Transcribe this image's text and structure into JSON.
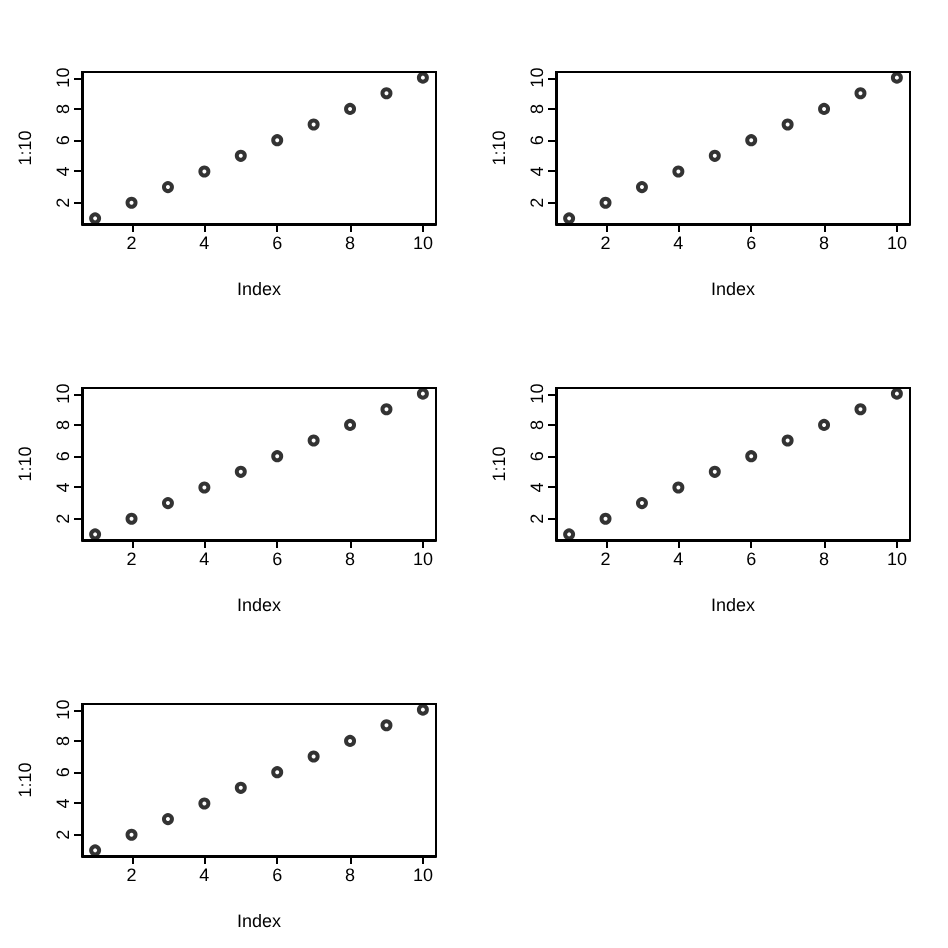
{
  "chart_data": [
    {
      "type": "scatter",
      "xlabel": "Index",
      "ylabel": "1:10",
      "x": [
        1,
        2,
        3,
        4,
        5,
        6,
        7,
        8,
        9,
        10
      ],
      "values": [
        1,
        2,
        3,
        4,
        5,
        6,
        7,
        8,
        9,
        10
      ],
      "color": "#000000",
      "marker": "circle",
      "xlim": [
        0.64,
        10.36
      ],
      "ylim": [
        0.64,
        10.36
      ],
      "xticks": [
        2,
        4,
        6,
        8,
        10
      ],
      "yticks": [
        2,
        4,
        6,
        8,
        10
      ],
      "grid": false
    },
    {
      "type": "scatter",
      "xlabel": "Index",
      "ylabel": "1:10",
      "x": [
        1,
        2,
        3,
        4,
        5,
        6,
        7,
        8,
        9,
        10
      ],
      "values": [
        1,
        2,
        3,
        4,
        5,
        6,
        7,
        8,
        9,
        10
      ],
      "color": "#000000",
      "marker": "circle",
      "xlim": [
        0.64,
        10.36
      ],
      "ylim": [
        0.64,
        10.36
      ],
      "xticks": [
        2,
        4,
        6,
        8,
        10
      ],
      "yticks": [
        2,
        4,
        6,
        8,
        10
      ],
      "grid": false
    },
    {
      "type": "scatter",
      "xlabel": "Index",
      "ylabel": "1:10",
      "x": [
        1,
        2,
        3,
        4,
        5,
        6,
        7,
        8,
        9,
        10
      ],
      "values": [
        1,
        2,
        3,
        4,
        5,
        6,
        7,
        8,
        9,
        10
      ],
      "color": "#000000",
      "marker": "circle",
      "xlim": [
        0.64,
        10.36
      ],
      "ylim": [
        0.64,
        10.36
      ],
      "xticks": [
        2,
        4,
        6,
        8,
        10
      ],
      "yticks": [
        2,
        4,
        6,
        8,
        10
      ],
      "grid": false
    },
    {
      "type": "scatter",
      "xlabel": "Index",
      "ylabel": "1:10",
      "x": [
        1,
        2,
        3,
        4,
        5,
        6,
        7,
        8,
        9,
        10
      ],
      "values": [
        1,
        2,
        3,
        4,
        5,
        6,
        7,
        8,
        9,
        10
      ],
      "color": "#000000",
      "marker": "circle",
      "xlim": [
        0.64,
        10.36
      ],
      "ylim": [
        0.64,
        10.36
      ],
      "xticks": [
        2,
        4,
        6,
        8,
        10
      ],
      "yticks": [
        2,
        4,
        6,
        8,
        10
      ],
      "grid": false
    },
    {
      "type": "scatter",
      "xlabel": "Index",
      "ylabel": "1:10",
      "x": [
        1,
        2,
        3,
        4,
        5,
        6,
        7,
        8,
        9,
        10
      ],
      "values": [
        1,
        2,
        3,
        4,
        5,
        6,
        7,
        8,
        9,
        10
      ],
      "color": "#000000",
      "marker": "circle",
      "xlim": [
        0.64,
        10.36
      ],
      "ylim": [
        0.64,
        10.36
      ],
      "xticks": [
        2,
        4,
        6,
        8,
        10
      ],
      "yticks": [
        2,
        4,
        6,
        8,
        10
      ],
      "grid": false
    }
  ]
}
